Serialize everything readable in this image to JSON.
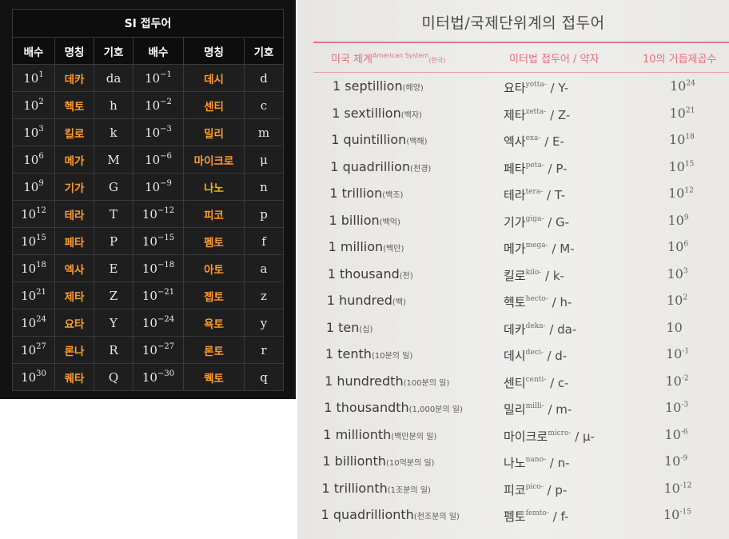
{
  "si_table": {
    "caption": "SI 접두어",
    "headers": [
      "배수",
      "명칭",
      "기호",
      "배수",
      "명칭",
      "기호"
    ],
    "rows": [
      {
        "m1_base": "10",
        "m1_exp": "1",
        "n1": "데카",
        "s1": "da",
        "m2_base": "10",
        "m2_exp": "−1",
        "n2": "데시",
        "s2": "d"
      },
      {
        "m1_base": "10",
        "m1_exp": "2",
        "n1": "헥토",
        "s1": "h",
        "m2_base": "10",
        "m2_exp": "−2",
        "n2": "센티",
        "s2": "c"
      },
      {
        "m1_base": "10",
        "m1_exp": "3",
        "n1": "킬로",
        "s1": "k",
        "m2_base": "10",
        "m2_exp": "−3",
        "n2": "밀리",
        "s2": "m"
      },
      {
        "m1_base": "10",
        "m1_exp": "6",
        "n1": "메가",
        "s1": "M",
        "m2_base": "10",
        "m2_exp": "−6",
        "n2": "마이크로",
        "s2": "μ"
      },
      {
        "m1_base": "10",
        "m1_exp": "9",
        "n1": "기가",
        "s1": "G",
        "m2_base": "10",
        "m2_exp": "−9",
        "n2": "나노",
        "s2": "n"
      },
      {
        "m1_base": "10",
        "m1_exp": "12",
        "n1": "테라",
        "s1": "T",
        "m2_base": "10",
        "m2_exp": "−12",
        "n2": "피코",
        "s2": "p"
      },
      {
        "m1_base": "10",
        "m1_exp": "15",
        "n1": "페타",
        "s1": "P",
        "m2_base": "10",
        "m2_exp": "−15",
        "n2": "펨토",
        "s2": "f"
      },
      {
        "m1_base": "10",
        "m1_exp": "18",
        "n1": "엑사",
        "s1": "E",
        "m2_base": "10",
        "m2_exp": "−18",
        "n2": "아토",
        "s2": "a"
      },
      {
        "m1_base": "10",
        "m1_exp": "21",
        "n1": "제타",
        "s1": "Z",
        "m2_base": "10",
        "m2_exp": "−21",
        "n2": "젭토",
        "s2": "z"
      },
      {
        "m1_base": "10",
        "m1_exp": "24",
        "n1": "요타",
        "s1": "Y",
        "m2_base": "10",
        "m2_exp": "−24",
        "n2": "욕토",
        "s2": "y"
      },
      {
        "m1_base": "10",
        "m1_exp": "27",
        "n1": "론나",
        "s1": "R",
        "m2_base": "10",
        "m2_exp": "−27",
        "n2": "론토",
        "s2": "r"
      },
      {
        "m1_base": "10",
        "m1_exp": "30",
        "n1": "퀘타",
        "s1": "Q",
        "m2_base": "10",
        "m2_exp": "−30",
        "n2": "퀙토",
        "s2": "q"
      }
    ]
  },
  "doc": {
    "title": "미터법/국제단위계의 접두어",
    "headers": {
      "col1": "미국 체계",
      "col1_sup": "American System",
      "col1_sub": "(한국)",
      "col2": "미터법 접두어 / 약자",
      "col3": "10의 거듭제곱수"
    },
    "rows": [
      {
        "en": "1 septillion",
        "ko": "(해양)",
        "prefix": "요타",
        "origin": "yotta-",
        "abbr": " / Y-",
        "base": "10",
        "exp": "24"
      },
      {
        "en": "1 sextillion",
        "ko": "(백자)",
        "prefix": "제타",
        "origin": "zetta-",
        "abbr": " / Z-",
        "base": "10",
        "exp": "21"
      },
      {
        "en": "1 quintillion",
        "ko": "(백해)",
        "prefix": "엑사",
        "origin": "exa-",
        "abbr": " / E-",
        "base": "10",
        "exp": "18"
      },
      {
        "en": "1 quadrillion",
        "ko": "(천경)",
        "prefix": "페타",
        "origin": "peta-",
        "abbr": " / P-",
        "base": "10",
        "exp": "15"
      },
      {
        "en": "1 trillion",
        "ko": "(백조)",
        "prefix": "테라",
        "origin": "tera-",
        "abbr": " / T-",
        "base": "10",
        "exp": "12"
      },
      {
        "en": "1 billion",
        "ko": "(백억)",
        "prefix": "기가",
        "origin": "giga-",
        "abbr": " / G-",
        "base": "10",
        "exp": "9"
      },
      {
        "en": "1 million",
        "ko": "(백만)",
        "prefix": "메가",
        "origin": "mega-",
        "abbr": " / M-",
        "base": "10",
        "exp": "6"
      },
      {
        "en": "1 thousand",
        "ko": "(천)",
        "prefix": "킬로",
        "origin": "kilo-",
        "abbr": " / k-",
        "base": "10",
        "exp": "3"
      },
      {
        "en": "1 hundred",
        "ko": "(백)",
        "prefix": "헥토",
        "origin": "hecto-",
        "abbr": " / h-",
        "base": "10",
        "exp": "2"
      },
      {
        "en": "1 ten",
        "ko": "(십)",
        "prefix": "데카",
        "origin": "deka-",
        "abbr": " / da-",
        "base": "10",
        "exp": ""
      },
      {
        "en": "1 tenth",
        "ko": "(10분의 일)",
        "prefix": "데시",
        "origin": "deci-",
        "abbr": " / d-",
        "base": "10",
        "exp": "-1"
      },
      {
        "en": "1 hundredth",
        "ko": "(100분의 일)",
        "prefix": "센티",
        "origin": "centi-",
        "abbr": " / c-",
        "base": "10",
        "exp": "-2"
      },
      {
        "en": "1 thousandth",
        "ko": "(1,000분의 일)",
        "prefix": "밀리",
        "origin": "milli-",
        "abbr": " / m-",
        "base": "10",
        "exp": "-3"
      },
      {
        "en": "1 millionth",
        "ko": "(백만분의 일)",
        "prefix": "마이크로",
        "origin": "micro-",
        "abbr": " / μ-",
        "base": "10",
        "exp": "-6"
      },
      {
        "en": "1 billionth",
        "ko": "(10억분의 일)",
        "prefix": "나노",
        "origin": "nano-",
        "abbr": " / n-",
        "base": "10",
        "exp": "-9"
      },
      {
        "en": "1 trillionth",
        "ko": "(1조분의 일)",
        "prefix": "피코",
        "origin": "pico-",
        "abbr": " / p-",
        "base": "10",
        "exp": "-12"
      },
      {
        "en": "1 quadrillionth",
        "ko": "(천조분의 일)",
        "prefix": "펨토",
        "origin": "femto-",
        "abbr": " / f-",
        "base": "10",
        "exp": "-15"
      }
    ]
  }
}
